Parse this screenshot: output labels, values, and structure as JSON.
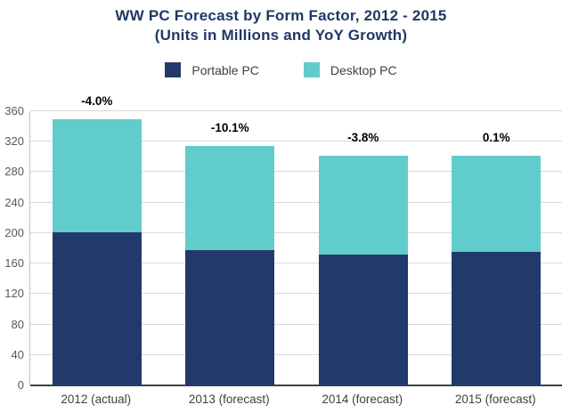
{
  "title": {
    "line1": "WW PC Forecast by Form Factor, 2012 - 2015",
    "line2": "(Units in Millions and YoY Growth)"
  },
  "legend": {
    "items": [
      {
        "label": "Portable PC",
        "color": "#213a6b"
      },
      {
        "label": "Desktop PC",
        "color": "#60cccb"
      }
    ]
  },
  "colors": {
    "title_text": "#1f3864",
    "portable": "#213a6b",
    "desktop": "#60cccb",
    "gridline": "#d9d9d9",
    "axis_line": "#bfbfbf",
    "baseline": "#404040",
    "ytick_text": "#595959",
    "xlabel_text": "#404040",
    "yoy_text": "#000000"
  },
  "chart_data": {
    "type": "bar",
    "stacked": true,
    "title": "WW PC Forecast by Form Factor, 2012 - 2015 (Units in Millions and YoY Growth)",
    "categories": [
      "2012 (actual)",
      "2013 (forecast)",
      "2014 (forecast)",
      "2015 (forecast)"
    ],
    "series": [
      {
        "name": "Portable PC",
        "color": "#213a6b",
        "values": [
          201,
          178,
          172,
          175
        ]
      },
      {
        "name": "Desktop PC",
        "color": "#60cccb",
        "values": [
          149,
          136,
          130,
          127
        ]
      }
    ],
    "totals": [
      350,
      314,
      302,
      302
    ],
    "yoy_labels": [
      "-4.0%",
      "-10.1%",
      "-3.8%",
      "0.1%"
    ],
    "xlabel": "",
    "ylabel": "",
    "ylim": [
      0,
      360
    ],
    "yticks": [
      0,
      40,
      80,
      120,
      160,
      200,
      240,
      280,
      320,
      360
    ],
    "grid": true,
    "legend_position": "top"
  }
}
